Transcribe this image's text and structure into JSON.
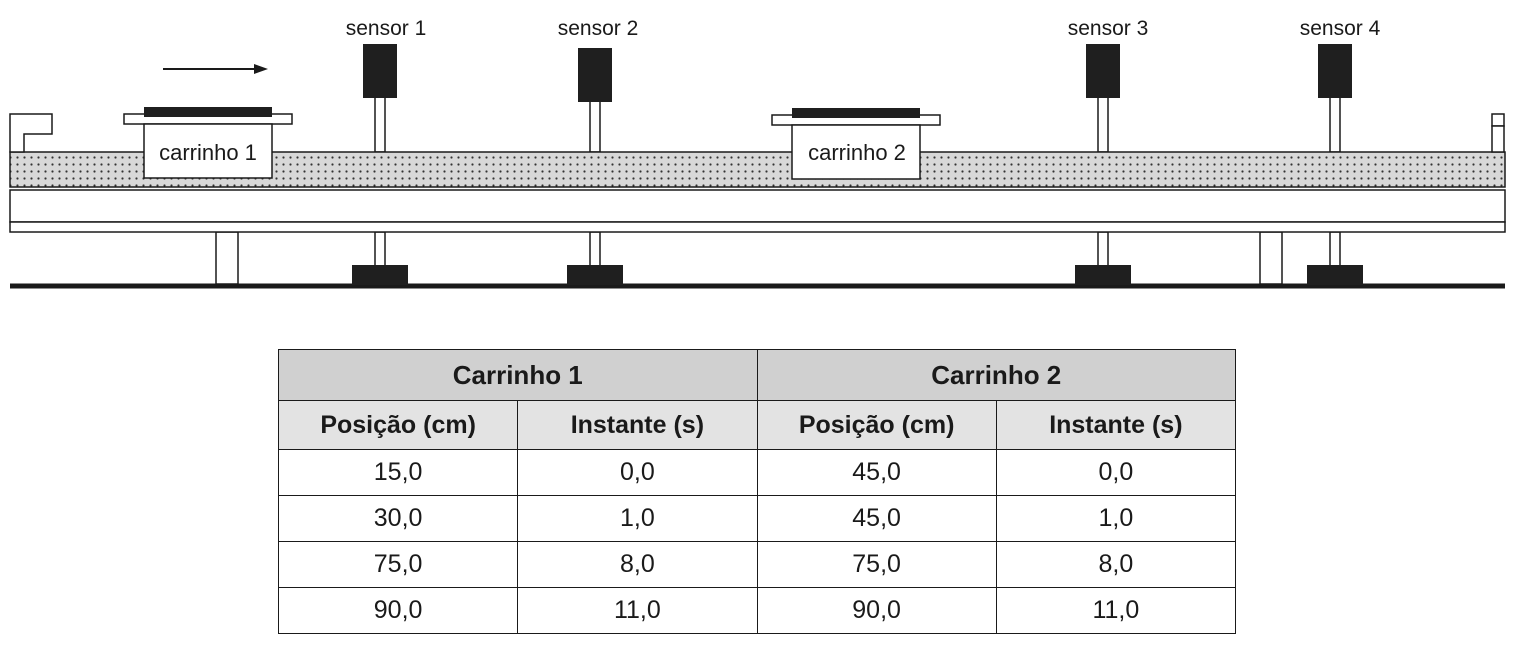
{
  "diagram": {
    "sensors": [
      {
        "label": "sensor 1"
      },
      {
        "label": "sensor 2"
      },
      {
        "label": "sensor 3"
      },
      {
        "label": "sensor 4"
      }
    ],
    "carts": [
      {
        "label": "carrinho 1"
      },
      {
        "label": "carrinho 2"
      }
    ]
  },
  "table": {
    "groups": [
      "Carrinho 1",
      "Carrinho 2"
    ],
    "columns": [
      "Posição (cm)",
      "Instante (s)",
      "Posição (cm)",
      "Instante (s)"
    ],
    "rows": [
      [
        "15,0",
        "0,0",
        "45,0",
        "0,0"
      ],
      [
        "30,0",
        "1,0",
        "45,0",
        "1,0"
      ],
      [
        "75,0",
        "8,0",
        "75,0",
        "8,0"
      ],
      [
        "90,0",
        "11,0",
        "90,0",
        "11,0"
      ]
    ]
  }
}
